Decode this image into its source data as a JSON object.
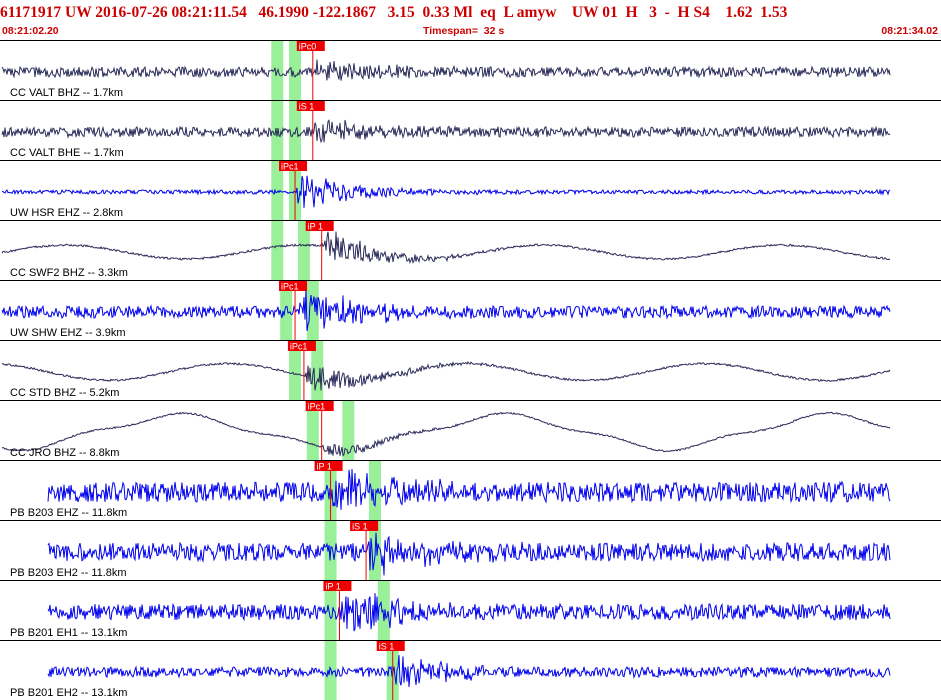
{
  "header": {
    "summary": "61171917 UW 2016-07-26 08:21:11.54   46.1990 -122.1867   3.15  0.33 Ml  eq  L amyw    UW 01  H   3  -  H S4    1.62  1.53",
    "start_time": "08:21:02.20",
    "timespan_label": "Timespan=  32 s",
    "end_time": "08:21:34.02"
  },
  "colors": {
    "header_text": "#cc0000",
    "trace_dark": "#2a2a5a",
    "trace_blue": "#0000ee",
    "pick": "#ee0000",
    "window": "#99f099",
    "separator": "#000000",
    "label": "#000000"
  },
  "channels": [
    {
      "label": "CC VALT BHZ -- 1.7km",
      "color": "dark",
      "amp": 5,
      "style": "noise",
      "pick": "iPc0",
      "signal_start": 0.35,
      "peak": 12,
      "windows": [
        0.31,
        0.33
      ]
    },
    {
      "label": "CC VALT BHE -- 1.7km",
      "color": "dark",
      "amp": 5,
      "style": "noise",
      "pick": "iS 1",
      "signal_start": 0.35,
      "peak": 14,
      "windows": [
        0.31,
        0.33
      ]
    },
    {
      "label": "UW HSR EHZ -- 2.8km",
      "color": "blue",
      "amp": 2,
      "style": "noise",
      "pick": "iPc1",
      "signal_start": 0.33,
      "peak": 22,
      "windows": [
        0.31,
        0.33
      ]
    },
    {
      "label": "CC SWF2 BHZ -- 3.3km",
      "color": "dark",
      "amp": 10,
      "style": "wave",
      "pick": "iP 1",
      "signal_start": 0.36,
      "peak": 20,
      "windows": [
        0.31,
        0.34
      ]
    },
    {
      "label": "UW SHW EHZ -- 3.9km",
      "color": "blue",
      "amp": 6,
      "style": "noise",
      "pick": "iPc1",
      "signal_start": 0.33,
      "peak": 26,
      "windows": [
        0.32,
        0.35
      ]
    },
    {
      "label": "CC STD BHZ -- 5.2km",
      "color": "dark",
      "amp": 12,
      "style": "wave",
      "pick": "iPc1",
      "signal_start": 0.34,
      "peak": 18,
      "windows": [
        0.33,
        0.355
      ]
    },
    {
      "label": "CC JRO BHZ -- 8.8km",
      "color": "dark",
      "amp": 20,
      "style": "slow",
      "pick": "iPc1",
      "signal_start": 0.36,
      "peak": 8,
      "windows": [
        0.35,
        0.39
      ]
    },
    {
      "label": "PB B203 EHZ -- 11.8km",
      "color": "blue",
      "amp": 10,
      "style": "noisy",
      "pick": "iP 1",
      "signal_start": 0.37,
      "peak": 24,
      "windows": [
        0.37,
        0.42
      ]
    },
    {
      "label": "PB B203 EH2 -- 11.8km",
      "color": "blue",
      "amp": 9,
      "style": "noisy",
      "pick": "iS 1",
      "signal_start": 0.41,
      "peak": 22,
      "windows": [
        0.37,
        0.42
      ]
    },
    {
      "label": "PB B201 EH1 -- 13.1km",
      "color": "blue",
      "amp": 8,
      "style": "noisy",
      "pick": "iP 1",
      "signal_start": 0.38,
      "peak": 22,
      "windows": [
        0.37,
        0.43
      ]
    },
    {
      "label": "PB B201 EH2 -- 13.1km",
      "color": "blue",
      "amp": 5,
      "style": "noisy",
      "pick": "iS 1",
      "signal_start": 0.44,
      "peak": 20,
      "windows": [
        0.37,
        0.44
      ]
    }
  ]
}
